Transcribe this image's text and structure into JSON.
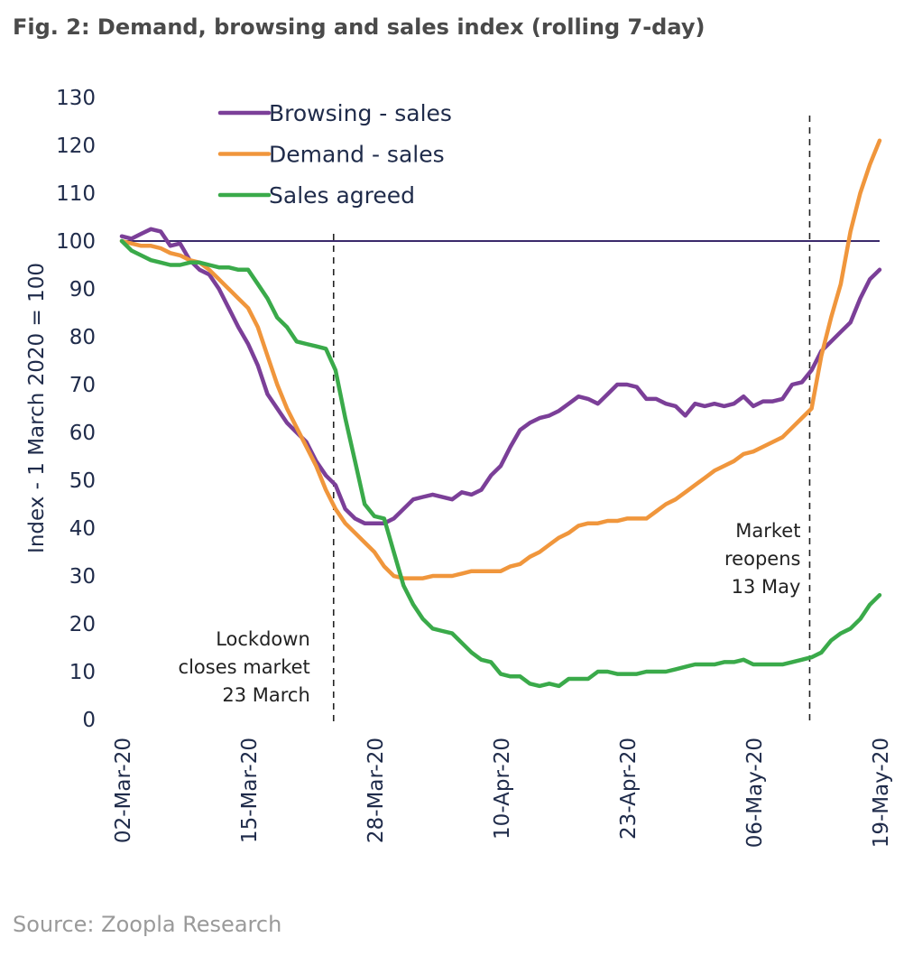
{
  "title": "Fig. 2: Demand, browsing and sales index (rolling 7-day)",
  "source": "Source: Zoopla Research",
  "chart_data": {
    "type": "line",
    "ylabel": "Index - 1 March 2020 = 100",
    "categories": [
      "02-Mar-20",
      null,
      null,
      null,
      null,
      null,
      null,
      null,
      null,
      null,
      null,
      null,
      null,
      "15-Mar-20",
      null,
      null,
      null,
      null,
      null,
      null,
      null,
      null,
      null,
      null,
      null,
      null,
      "28-Mar-20",
      null,
      null,
      null,
      null,
      null,
      null,
      null,
      null,
      null,
      null,
      null,
      null,
      "10-Apr-20",
      null,
      null,
      null,
      null,
      null,
      null,
      null,
      null,
      null,
      null,
      null,
      null,
      "23-Apr-20",
      null,
      null,
      null,
      null,
      null,
      null,
      null,
      null,
      null,
      null,
      null,
      null,
      "06-May-20",
      null,
      null,
      null,
      null,
      null,
      null,
      null,
      null,
      null,
      null,
      null,
      null,
      "19-May-20"
    ],
    "series": [
      {
        "name": "Browsing - sales",
        "color": "#7b3f98",
        "values": [
          101,
          100.5,
          101.5,
          102.5,
          102,
          99,
          99.5,
          96,
          94,
          93,
          90,
          86,
          82,
          78.5,
          74,
          68,
          65,
          62,
          60,
          58,
          54,
          51,
          49,
          44,
          42,
          41,
          41,
          41,
          42,
          44,
          46,
          46.5,
          47,
          46.5,
          46,
          47.5,
          47,
          48,
          51,
          53,
          57,
          60.5,
          62,
          63,
          63.5,
          64.5,
          66,
          67.5,
          67,
          66,
          68,
          70,
          70,
          69.5,
          67,
          67,
          66,
          65.5,
          63.5,
          66,
          65.5,
          66,
          65.5,
          66,
          67.5,
          65.5,
          66.5,
          66.5,
          67,
          70,
          70.5,
          73,
          77,
          79,
          81,
          83,
          88,
          92,
          94
        ]
      },
      {
        "name": "Demand - sales",
        "color": "#f0963c",
        "values": [
          100,
          99.5,
          99,
          99,
          98.5,
          97.5,
          97,
          96,
          95.5,
          94,
          92,
          90,
          88,
          86,
          82,
          76,
          70,
          65,
          61,
          57,
          53,
          48,
          44,
          41,
          39,
          37,
          35,
          32,
          30,
          29.5,
          29.5,
          29.5,
          30,
          30,
          30,
          30.5,
          31,
          31,
          31,
          31,
          32,
          32.5,
          34,
          35,
          36.5,
          38,
          39,
          40.5,
          41,
          41,
          41.5,
          41.5,
          42,
          42,
          42,
          43.5,
          45,
          46,
          47.5,
          49,
          50.5,
          52,
          53,
          54,
          55.5,
          56,
          57,
          58,
          59,
          61,
          63,
          65,
          76,
          84,
          91,
          102,
          110,
          116,
          121
        ]
      },
      {
        "name": "Sales agreed",
        "color": "#3aaa4a",
        "values": [
          100,
          98,
          97,
          96,
          95.5,
          95,
          95,
          95.5,
          95.5,
          95,
          94.5,
          94.5,
          94,
          94,
          91,
          88,
          84,
          82,
          79,
          78.5,
          78,
          77.5,
          73,
          63,
          54,
          45,
          42.5,
          42,
          35,
          28,
          24,
          21,
          19,
          18.5,
          18,
          16,
          14,
          12.5,
          12,
          9.5,
          9,
          9,
          7.5,
          7,
          7.5,
          7,
          8.5,
          8.5,
          8.5,
          10,
          10,
          9.5,
          9.5,
          9.5,
          10,
          10,
          10,
          10.5,
          11,
          11.5,
          11.5,
          11.5,
          12,
          12,
          12.5,
          11.5,
          11.5,
          11.5,
          11.5,
          12,
          12.5,
          13,
          14,
          16.5,
          18,
          19,
          21,
          24,
          26
        ]
      }
    ],
    "ylim": [
      0,
      130
    ],
    "yticks": [
      0,
      10,
      20,
      30,
      40,
      50,
      60,
      70,
      80,
      90,
      100,
      110,
      120,
      130
    ],
    "reference_line": {
      "value": 100,
      "color": "#3b2a6b"
    },
    "annotations": [
      {
        "x": 21.8,
        "lines": [
          "Lockdown",
          "closes market",
          "23 March"
        ]
      },
      {
        "x": 70.8,
        "lines": [
          "Market",
          "reopens",
          "13 May"
        ]
      }
    ],
    "legend": "top"
  }
}
